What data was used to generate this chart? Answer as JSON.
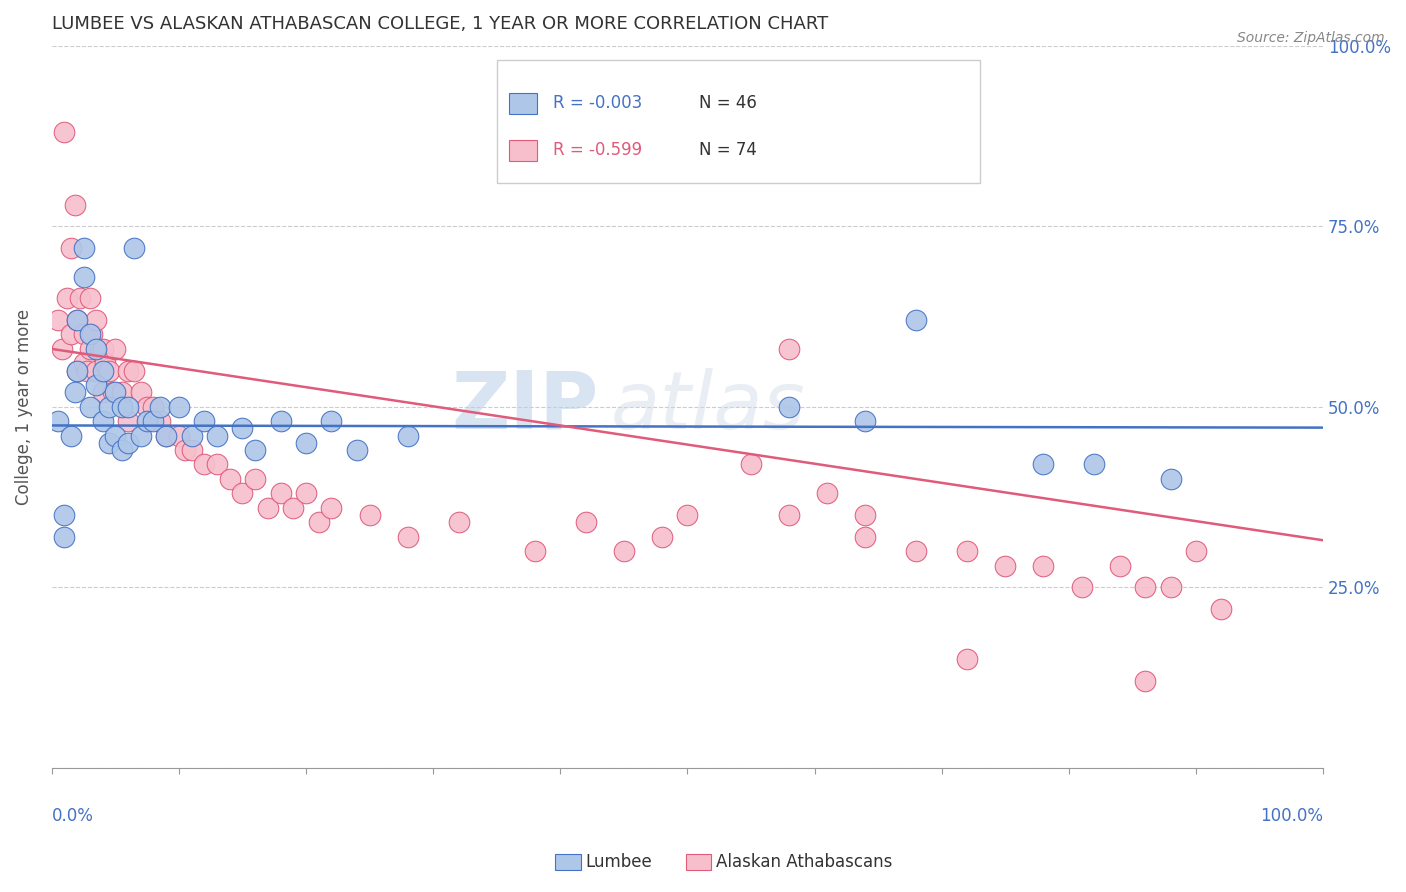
{
  "title": "LUMBEE VS ALASKAN ATHABASCAN COLLEGE, 1 YEAR OR MORE CORRELATION CHART",
  "source_text": "Source: ZipAtlas.com",
  "ylabel": "College, 1 year or more",
  "legend_labels": [
    "Lumbee",
    "Alaskan Athabascans"
  ],
  "legend_r": [
    "R = -0.003",
    "R = -0.599"
  ],
  "legend_n": [
    "N = 46",
    "N = 74"
  ],
  "color_lumbee": "#aec6e8",
  "color_athabascan": "#f7bfcc",
  "line_color_lumbee": "#4472c4",
  "line_color_athabascan": "#e05a7a",
  "lumbee_x": [
    0.005,
    0.01,
    0.01,
    0.015,
    0.018,
    0.02,
    0.02,
    0.025,
    0.025,
    0.03,
    0.03,
    0.035,
    0.035,
    0.04,
    0.04,
    0.045,
    0.045,
    0.05,
    0.05,
    0.055,
    0.055,
    0.06,
    0.06,
    0.065,
    0.07,
    0.075,
    0.08,
    0.085,
    0.09,
    0.1,
    0.11,
    0.12,
    0.13,
    0.15,
    0.16,
    0.18,
    0.2,
    0.22,
    0.24,
    0.28,
    0.58,
    0.64,
    0.68,
    0.78,
    0.82,
    0.88
  ],
  "lumbee_y": [
    0.48,
    0.35,
    0.32,
    0.46,
    0.52,
    0.55,
    0.62,
    0.68,
    0.72,
    0.6,
    0.5,
    0.58,
    0.53,
    0.55,
    0.48,
    0.5,
    0.45,
    0.52,
    0.46,
    0.5,
    0.44,
    0.5,
    0.45,
    0.72,
    0.46,
    0.48,
    0.48,
    0.5,
    0.46,
    0.5,
    0.46,
    0.48,
    0.46,
    0.47,
    0.44,
    0.48,
    0.45,
    0.48,
    0.44,
    0.46,
    0.5,
    0.48,
    0.62,
    0.42,
    0.42,
    0.4
  ],
  "athabascan_x": [
    0.005,
    0.008,
    0.01,
    0.012,
    0.015,
    0.015,
    0.018,
    0.02,
    0.02,
    0.022,
    0.025,
    0.025,
    0.028,
    0.03,
    0.03,
    0.032,
    0.035,
    0.035,
    0.038,
    0.04,
    0.04,
    0.042,
    0.045,
    0.048,
    0.05,
    0.055,
    0.06,
    0.06,
    0.065,
    0.07,
    0.075,
    0.08,
    0.085,
    0.09,
    0.1,
    0.105,
    0.11,
    0.12,
    0.13,
    0.14,
    0.15,
    0.16,
    0.17,
    0.18,
    0.19,
    0.2,
    0.21,
    0.22,
    0.25,
    0.28,
    0.32,
    0.38,
    0.42,
    0.45,
    0.48,
    0.5,
    0.55,
    0.58,
    0.61,
    0.64,
    0.68,
    0.72,
    0.75,
    0.78,
    0.81,
    0.84,
    0.86,
    0.88,
    0.9,
    0.92,
    0.58,
    0.64,
    0.72,
    0.86
  ],
  "athabascan_y": [
    0.62,
    0.58,
    0.88,
    0.65,
    0.72,
    0.6,
    0.78,
    0.62,
    0.55,
    0.65,
    0.6,
    0.56,
    0.55,
    0.65,
    0.58,
    0.6,
    0.62,
    0.55,
    0.58,
    0.58,
    0.52,
    0.56,
    0.55,
    0.52,
    0.58,
    0.52,
    0.55,
    0.48,
    0.55,
    0.52,
    0.5,
    0.5,
    0.48,
    0.46,
    0.46,
    0.44,
    0.44,
    0.42,
    0.42,
    0.4,
    0.38,
    0.4,
    0.36,
    0.38,
    0.36,
    0.38,
    0.34,
    0.36,
    0.35,
    0.32,
    0.34,
    0.3,
    0.34,
    0.3,
    0.32,
    0.35,
    0.42,
    0.35,
    0.38,
    0.32,
    0.3,
    0.3,
    0.28,
    0.28,
    0.25,
    0.28,
    0.25,
    0.25,
    0.3,
    0.22,
    0.58,
    0.35,
    0.15,
    0.12
  ],
  "watermark_zip": "ZIP",
  "watermark_atlas": "atlas",
  "xlim": [
    0.0,
    1.0
  ],
  "ylim": [
    0.0,
    1.0
  ],
  "yticks": [
    0.0,
    0.25,
    0.5,
    0.75,
    1.0
  ],
  "yticklabels_right": [
    "",
    "25.0%",
    "50.0%",
    "75.0%",
    "100.0%"
  ],
  "x_left_label": "0.0%",
  "x_right_label": "100.0%",
  "lumbee_line_y0": 0.474,
  "lumbee_line_y1": 0.471,
  "athabascan_line_y0": 0.58,
  "athabascan_line_y1": 0.315,
  "background_color": "#ffffff",
  "grid_color": "#cccccc"
}
